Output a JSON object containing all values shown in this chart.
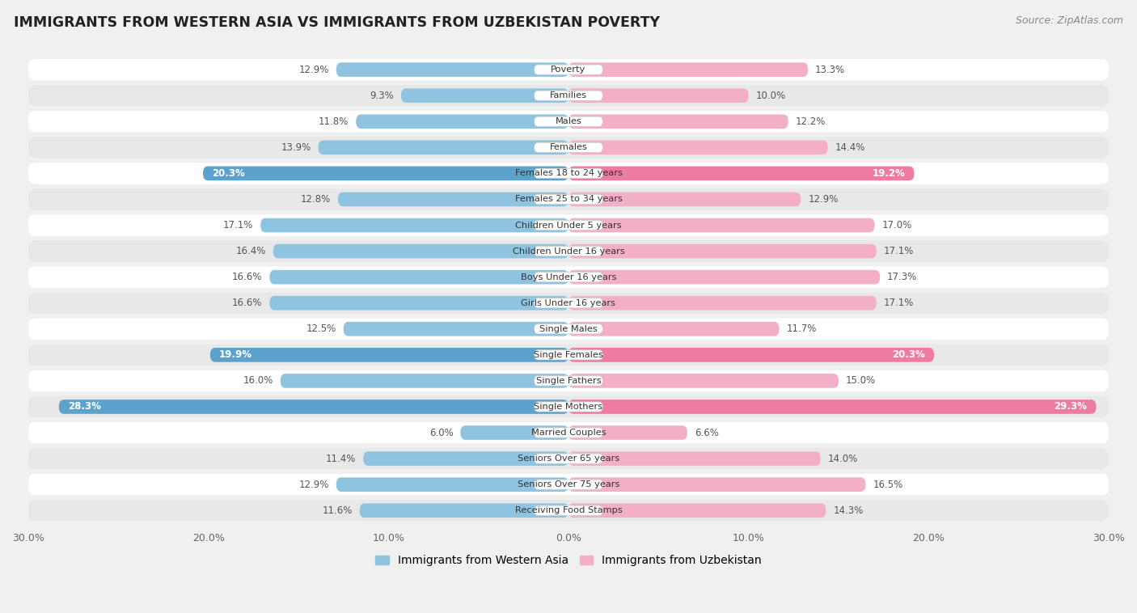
{
  "title": "IMMIGRANTS FROM WESTERN ASIA VS IMMIGRANTS FROM UZBEKISTAN POVERTY",
  "source": "Source: ZipAtlas.com",
  "categories": [
    "Poverty",
    "Families",
    "Males",
    "Females",
    "Females 18 to 24 years",
    "Females 25 to 34 years",
    "Children Under 5 years",
    "Children Under 16 years",
    "Boys Under 16 years",
    "Girls Under 16 years",
    "Single Males",
    "Single Females",
    "Single Fathers",
    "Single Mothers",
    "Married Couples",
    "Seniors Over 65 years",
    "Seniors Over 75 years",
    "Receiving Food Stamps"
  ],
  "western_asia": [
    12.9,
    9.3,
    11.8,
    13.9,
    20.3,
    12.8,
    17.1,
    16.4,
    16.6,
    16.6,
    12.5,
    19.9,
    16.0,
    28.3,
    6.0,
    11.4,
    12.9,
    11.6
  ],
  "uzbekistan": [
    13.3,
    10.0,
    12.2,
    14.4,
    19.2,
    12.9,
    17.0,
    17.1,
    17.3,
    17.1,
    11.7,
    20.3,
    15.0,
    29.3,
    6.6,
    14.0,
    16.5,
    14.3
  ],
  "color_western": "#8ec4e0",
  "color_uzbekistan": "#f4afc8",
  "color_western_highlight": "#5ba3cc",
  "color_uzbekistan_highlight": "#ee7ca0",
  "highlight_rows": [
    4,
    11,
    13
  ],
  "background_color": "#f0f0f0",
  "row_bg_light": "#ffffff",
  "row_bg_dark": "#e8e8e8",
  "max_val": 30.0,
  "legend_western": "Immigrants from Western Asia",
  "legend_uzbekistan": "Immigrants from Uzbekistan"
}
